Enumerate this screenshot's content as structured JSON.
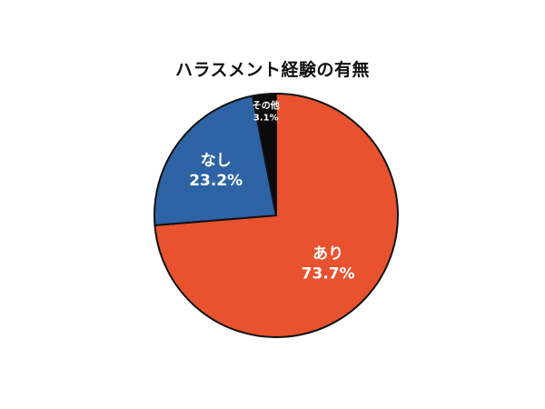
{
  "chart_data": {
    "type": "pie",
    "title": "ハラスメント経験の有無",
    "slices": [
      {
        "label": "あり",
        "value": 73.7,
        "value_label": "73.7%",
        "color": "#E8522F"
      },
      {
        "label": "なし",
        "value": 23.2,
        "value_label": "23.2%",
        "color": "#2D63A5"
      },
      {
        "label": "その他",
        "value": 3.1,
        "value_label": "3.1%",
        "color": "#0B0B0B"
      }
    ],
    "start": "12 o'clock",
    "direction": "clockwise",
    "border_color": "#111111"
  }
}
